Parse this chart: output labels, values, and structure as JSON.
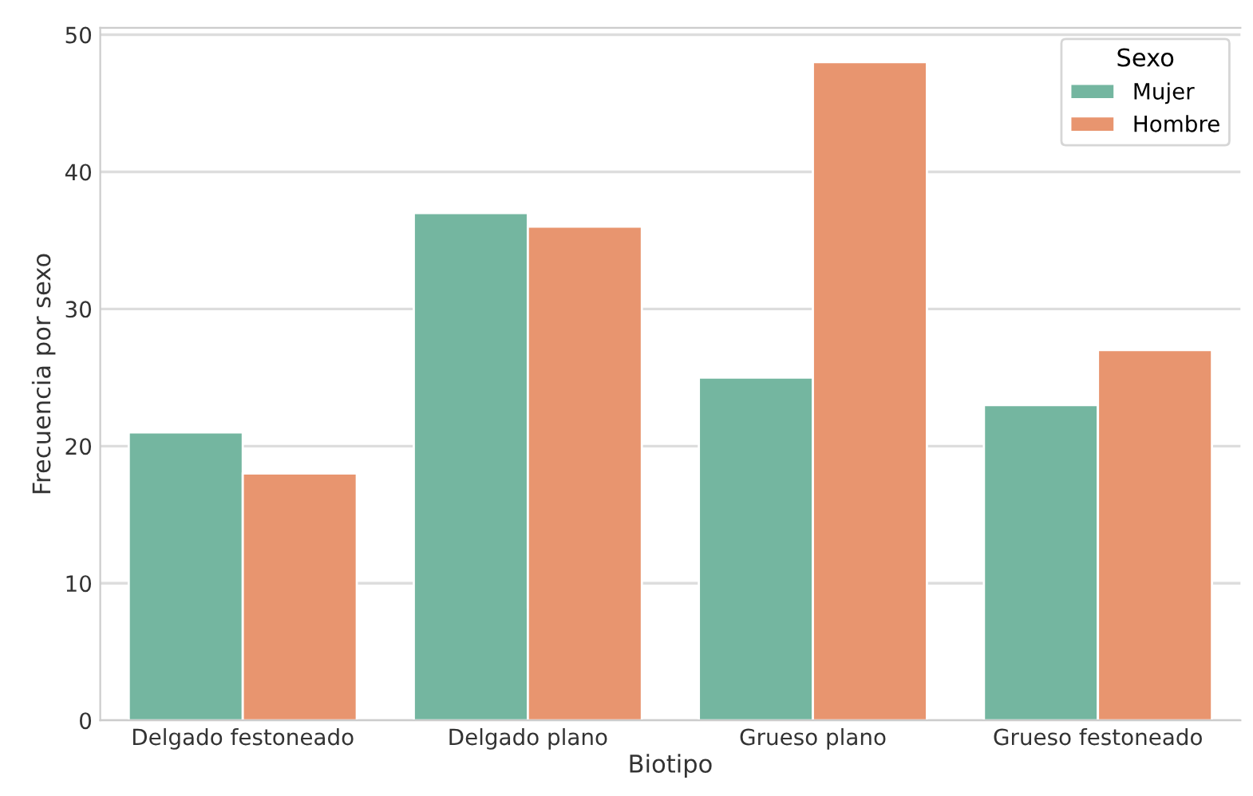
{
  "chart_data": {
    "type": "bar",
    "xlabel": "Biotipo",
    "ylabel": "Frecuencia por sexo",
    "legend_title": "Sexo",
    "categories": [
      "Delgado festoneado",
      "Delgado plano",
      "Grueso plano",
      "Grueso festoneado"
    ],
    "series": [
      {
        "name": "Mujer",
        "color": "#74b6a0",
        "values": [
          21,
          37,
          25,
          23
        ]
      },
      {
        "name": "Hombre",
        "color": "#e8956f",
        "values": [
          18,
          36,
          48,
          27
        ]
      }
    ],
    "ylim": [
      0,
      50.5
    ],
    "yticks": [
      0,
      10,
      20,
      30,
      40,
      50
    ],
    "grid": "y",
    "legend": "top right"
  }
}
